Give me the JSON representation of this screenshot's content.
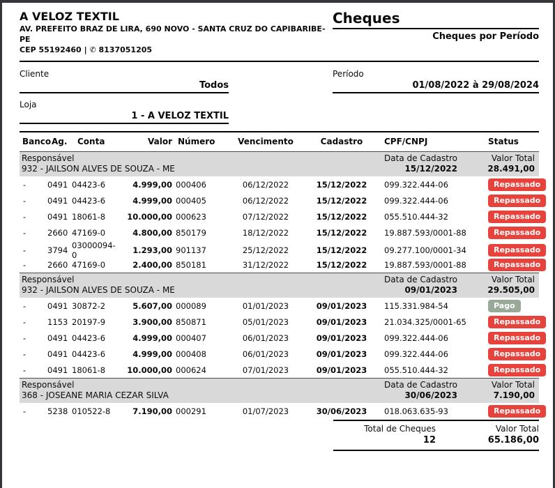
{
  "company": {
    "name": "A VELOZ TEXTIL",
    "address": "AV. PREFEITO BRAZ DE LIRA, 690 NOVO - SANTA CRUZ DO CAPIBARIBE-PE",
    "cep": "CEP 55192460",
    "separator": "|",
    "phone_icon": "✆",
    "phone": "8137051205"
  },
  "report": {
    "title": "Cheques",
    "subtitle": "Cheques por Período"
  },
  "filters": {
    "cliente_label": "Cliente",
    "cliente_value": "Todos",
    "periodo_label": "Período",
    "periodo_value": "01/08/2022 à 29/08/2024",
    "loja_label": "Loja",
    "loja_value": "1 - A VELOZ TEXTIL"
  },
  "table": {
    "headers": [
      "Banco",
      "Ag.",
      "Conta",
      "Valor",
      "Número",
      "Vencimento",
      "Cadastro",
      "CPF/CNPJ",
      "Status"
    ],
    "group_header_labels": {
      "responsavel": "Responsável",
      "data_cadastro": "Data de Cadastro",
      "valor_total": "Valor Total"
    },
    "groups": [
      {
        "responsavel": "932 - JAILSON ALVES DE SOUZA - ME",
        "data_cadastro": "15/12/2022",
        "valor_total": "28.491,00",
        "rows": [
          {
            "banco": "-",
            "ag": "0491",
            "conta": "04423-6",
            "valor": "4.999,00",
            "numero": "000406",
            "vencimento": "06/12/2022",
            "cadastro": "15/12/2022",
            "cpf": "099.322.444-06",
            "status": "Repassado"
          },
          {
            "banco": "-",
            "ag": "0491",
            "conta": "04423-6",
            "valor": "4.999,00",
            "numero": "000405",
            "vencimento": "06/12/2022",
            "cadastro": "15/12/2022",
            "cpf": "099.322.444-06",
            "status": "Repassado"
          },
          {
            "banco": "-",
            "ag": "0491",
            "conta": "18061-8",
            "valor": "10.000,00",
            "numero": "000623",
            "vencimento": "07/12/2022",
            "cadastro": "15/12/2022",
            "cpf": "055.510.444-32",
            "status": "Repassado"
          },
          {
            "banco": "-",
            "ag": "2660",
            "conta": "47169-0",
            "valor": "4.800,00",
            "numero": "850179",
            "vencimento": "18/12/2022",
            "cadastro": "15/12/2022",
            "cpf": "19.887.593/0001-88",
            "status": "Repassado"
          },
          {
            "banco": "-",
            "ag": "3794",
            "conta": "03000094-0",
            "valor": "1.293,00",
            "numero": "901137",
            "vencimento": "25/12/2022",
            "cadastro": "15/12/2022",
            "cpf": "09.277.100/0001-34",
            "status": "Repassado"
          },
          {
            "banco": "-",
            "ag": "2660",
            "conta": "47169-0",
            "valor": "2.400,00",
            "numero": "850181",
            "vencimento": "31/12/2022",
            "cadastro": "15/12/2022",
            "cpf": "19.887.593/0001-88",
            "status": "Repassado"
          }
        ]
      },
      {
        "responsavel": "932 - JAILSON ALVES DE SOUZA - ME",
        "data_cadastro": "09/01/2023",
        "valor_total": "29.505,00",
        "rows": [
          {
            "banco": "-",
            "ag": "0491",
            "conta": "30872-2",
            "valor": "5.607,00",
            "numero": "000089",
            "vencimento": "01/01/2023",
            "cadastro": "09/01/2023",
            "cpf": "115.331.984-54",
            "status": "Pago"
          },
          {
            "banco": "-",
            "ag": "1153",
            "conta": "20197-9",
            "valor": "3.900,00",
            "numero": "850871",
            "vencimento": "05/01/2023",
            "cadastro": "09/01/2023",
            "cpf": "21.034.325/0001-65",
            "status": "Repassado"
          },
          {
            "banco": "-",
            "ag": "0491",
            "conta": "04423-6",
            "valor": "4.999,00",
            "numero": "000407",
            "vencimento": "06/01/2023",
            "cadastro": "09/01/2023",
            "cpf": "099.322.444-06",
            "status": "Repassado"
          },
          {
            "banco": "-",
            "ag": "0491",
            "conta": "04423-6",
            "valor": "4.999,00",
            "numero": "000408",
            "vencimento": "06/01/2023",
            "cadastro": "09/01/2023",
            "cpf": "099.322.444-06",
            "status": "Repassado"
          },
          {
            "banco": "-",
            "ag": "0491",
            "conta": "18061-8",
            "valor": "10.000,00",
            "numero": "000624",
            "vencimento": "07/01/2023",
            "cadastro": "09/01/2023",
            "cpf": "055.510.444-32",
            "status": "Repassado"
          }
        ]
      },
      {
        "responsavel": "368 - JOSEANE MARIA CEZAR SILVA",
        "data_cadastro": "30/06/2023",
        "valor_total": "7.190,00",
        "rows": [
          {
            "banco": "-",
            "ag": "5238",
            "conta": "010522-8",
            "valor": "7.190,00",
            "numero": "000291",
            "vencimento": "01/07/2023",
            "cadastro": "30/06/2023",
            "cpf": "018.063.635-93",
            "status": "Repassado"
          }
        ]
      }
    ]
  },
  "totals": {
    "count_label": "Total de Cheques",
    "count_value": "12",
    "valor_total_label": "Valor Total",
    "valor_total_value": "65.186,00"
  },
  "colors": {
    "status_repassado": "#e8423c",
    "status_pago": "#98a998",
    "group_header_bg": "#d9d9d9"
  },
  "status_badge_classes": {
    "Repassado": "repassado",
    "Pago": "pago"
  }
}
